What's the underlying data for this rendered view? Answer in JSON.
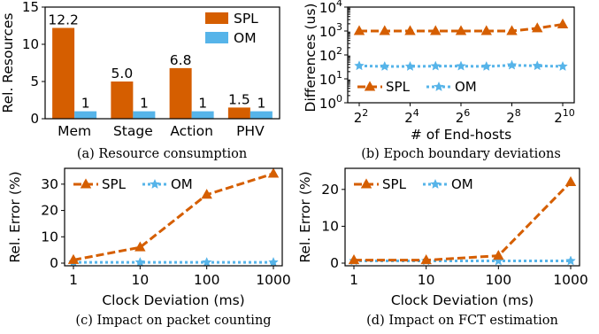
{
  "colors": {
    "spl": "#d55e00",
    "om": "#56b4e9"
  },
  "chart_data": [
    {
      "id": "a",
      "type": "bar",
      "caption": "(a) Resource consumption",
      "ylabel": "Rel. Resources",
      "xlabel": "",
      "categories": [
        "Mem",
        "Stage",
        "Action",
        "PHV"
      ],
      "ylim": [
        0,
        15
      ],
      "yticks": [
        "0",
        "5",
        "10",
        "15"
      ],
      "series": [
        {
          "name": "SPL",
          "values": [
            12.2,
            5.0,
            6.8,
            1.5
          ],
          "labels": [
            "12.2",
            "5.0",
            "6.8",
            "1.5"
          ]
        },
        {
          "name": "OM",
          "values": [
            1,
            1,
            1,
            1
          ],
          "labels": [
            "1",
            "1",
            "1",
            "1"
          ]
        }
      ],
      "legend": "top-right"
    },
    {
      "id": "b",
      "type": "line",
      "caption": "(b) Epoch boundary deviations",
      "ylabel": "Differences (us)",
      "xlabel": "# of End-hosts",
      "xscale": "log2",
      "yscale": "log10",
      "xlim": [
        4,
        1024
      ],
      "ylim": [
        1,
        10000
      ],
      "xticks": [
        {
          "value": 4,
          "base": "2",
          "exp": "2"
        },
        {
          "value": 16,
          "base": "2",
          "exp": "4"
        },
        {
          "value": 64,
          "base": "2",
          "exp": "6"
        },
        {
          "value": 256,
          "base": "2",
          "exp": "8"
        },
        {
          "value": 1024,
          "base": "2",
          "exp": "10"
        }
      ],
      "yticks": [
        {
          "value": 1,
          "base": "10",
          "exp": "0"
        },
        {
          "value": 10,
          "base": "10",
          "exp": "1"
        },
        {
          "value": 100,
          "base": "10",
          "exp": "2"
        },
        {
          "value": 1000,
          "base": "10",
          "exp": "3"
        },
        {
          "value": 10000,
          "base": "10",
          "exp": "4"
        }
      ],
      "x": [
        4,
        8,
        16,
        32,
        64,
        128,
        256,
        512,
        1024
      ],
      "series": [
        {
          "name": "SPL",
          "values": [
            1000,
            1000,
            1000,
            1000,
            1000,
            1000,
            1000,
            1300,
            1900
          ]
        },
        {
          "name": "OM",
          "values": [
            35,
            33,
            33,
            34,
            34,
            33,
            37,
            35,
            33
          ]
        }
      ],
      "legend": "bottom-left"
    },
    {
      "id": "c",
      "type": "line",
      "caption": "(c) Impact on packet counting",
      "ylabel": "Rel. Error (%)",
      "xlabel": "Clock Deviation (ms)",
      "xscale": "log10",
      "xlim": [
        1,
        1000
      ],
      "ylim": [
        0,
        35
      ],
      "xticks": [
        {
          "value": 1,
          "label": "1"
        },
        {
          "value": 10,
          "label": "10"
        },
        {
          "value": 100,
          "label": "100"
        },
        {
          "value": 1000,
          "label": "1000"
        }
      ],
      "yticks": [
        {
          "value": 0,
          "label": "0"
        },
        {
          "value": 10,
          "label": "10"
        },
        {
          "value": 20,
          "label": "20"
        },
        {
          "value": 30,
          "label": "30"
        }
      ],
      "x": [
        1,
        10,
        100,
        1000
      ],
      "series": [
        {
          "name": "SPL",
          "values": [
            1.2,
            6,
            26,
            34
          ]
        },
        {
          "name": "OM",
          "values": [
            0.3,
            0.3,
            0.3,
            0.3
          ]
        }
      ],
      "legend": "top-left"
    },
    {
      "id": "d",
      "type": "line",
      "caption": "(d) Impact on FCT estimation",
      "ylabel": "Rel. Error (%)",
      "xlabel": "Clock Deviation (ms)",
      "xscale": "log10",
      "xlim": [
        1,
        1000
      ],
      "ylim": [
        0,
        25
      ],
      "xticks": [
        {
          "value": 1,
          "label": "1"
        },
        {
          "value": 10,
          "label": "10"
        },
        {
          "value": 100,
          "label": "100"
        },
        {
          "value": 1000,
          "label": "1000"
        }
      ],
      "yticks": [
        {
          "value": 0,
          "label": "0"
        },
        {
          "value": 10,
          "label": "10"
        },
        {
          "value": 20,
          "label": "20"
        }
      ],
      "x": [
        1,
        10,
        100,
        1000
      ],
      "series": [
        {
          "name": "SPL",
          "values": [
            0.8,
            0.8,
            2,
            22
          ]
        },
        {
          "name": "OM",
          "values": [
            0.6,
            0.6,
            0.6,
            0.6
          ]
        }
      ],
      "legend": "top-left"
    }
  ]
}
